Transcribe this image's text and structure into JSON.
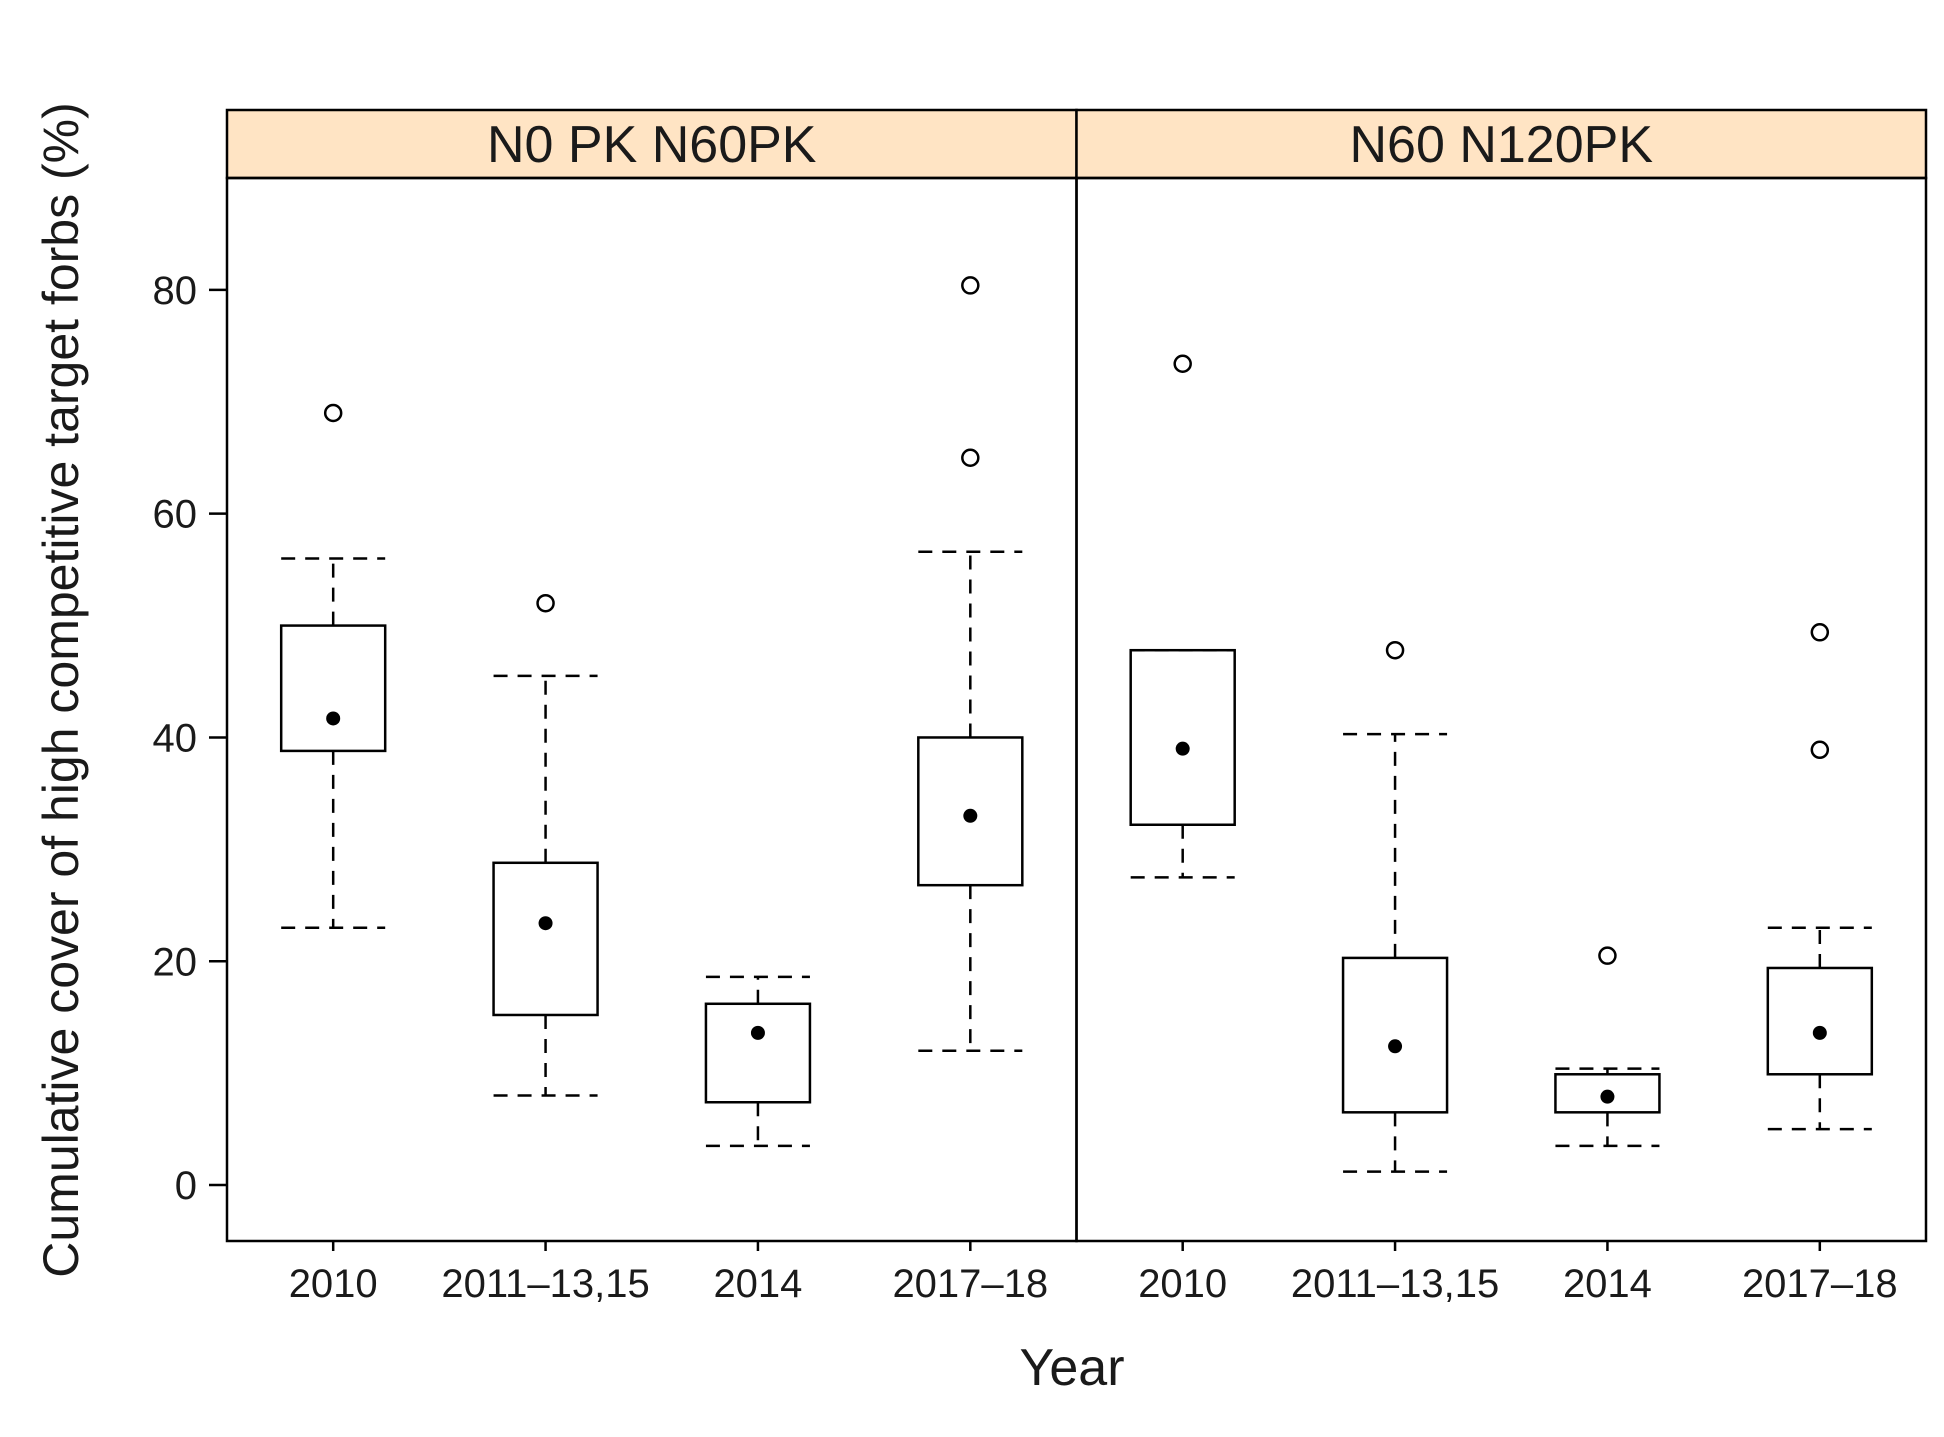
{
  "chart_data": {
    "type": "boxplot",
    "xlabel": "Year",
    "ylabel": "Cumulative cover of high competitive target forbs (%)",
    "ylim": [
      -5,
      90
    ],
    "yticks": [
      0,
      20,
      40,
      60,
      80
    ],
    "categories": [
      "2010",
      "2011–13,15",
      "2014",
      "2017–18"
    ],
    "strip_color": "#ffe4c4",
    "panels": [
      {
        "title": "N0  PK  N60PK",
        "boxes": [
          {
            "category": "2010",
            "whisker_low": 23,
            "q1": 38.8,
            "median": 41.7,
            "q3": 50,
            "whisker_high": 56,
            "outliers": [
              69
            ]
          },
          {
            "category": "2011–13,15",
            "whisker_low": 8,
            "q1": 15.2,
            "median": 23.4,
            "q3": 28.8,
            "whisker_high": 45.5,
            "outliers": [
              52
            ]
          },
          {
            "category": "2014",
            "whisker_low": 3.5,
            "q1": 7.4,
            "median": 13.6,
            "q3": 16.2,
            "whisker_high": 18.6,
            "outliers": []
          },
          {
            "category": "2017–18",
            "whisker_low": 12,
            "q1": 26.8,
            "median": 33,
            "q3": 40,
            "whisker_high": 56.6,
            "outliers": [
              65,
              80.4
            ]
          }
        ]
      },
      {
        "title": "N60  N120PK",
        "boxes": [
          {
            "category": "2010",
            "whisker_low": 27.5,
            "q1": 32.2,
            "median": 39,
            "q3": 47.8,
            "whisker_high": 47.8,
            "outliers": [
              73.4
            ]
          },
          {
            "category": "2011–13,15",
            "whisker_low": 1.2,
            "q1": 6.5,
            "median": 12.4,
            "q3": 20.3,
            "whisker_high": 40.3,
            "outliers": [
              47.8
            ]
          },
          {
            "category": "2014",
            "whisker_low": 3.5,
            "q1": 6.5,
            "median": 7.9,
            "q3": 9.9,
            "whisker_high": 10.4,
            "outliers": [
              20.5
            ]
          },
          {
            "category": "2017–18",
            "whisker_low": 5,
            "q1": 9.9,
            "median": 13.6,
            "q3": 19.4,
            "whisker_high": 23,
            "outliers": [
              38.9,
              49.4
            ]
          }
        ]
      }
    ]
  }
}
